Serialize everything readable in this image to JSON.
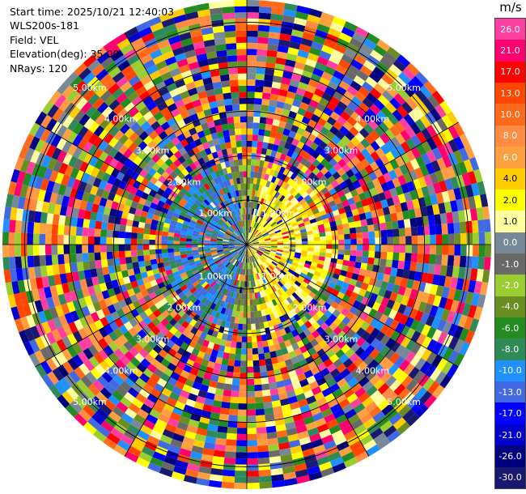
{
  "header": {
    "start_time": "Start time: 2025/10/21 12:40:03",
    "instrument": "WLS200s-181",
    "field": "Field: VEL",
    "elevation": "Elevation(deg): 35.00",
    "nrays": "NRays: 120"
  },
  "colorbar": {
    "unit": "m/s",
    "levels": [
      {
        "label": "26.0",
        "color": "#ff3fa0"
      },
      {
        "label": "21.0",
        "color": "#ff006e"
      },
      {
        "label": "17.0",
        "color": "#ff0000"
      },
      {
        "label": "13.0",
        "color": "#ff4500"
      },
      {
        "label": "10.0",
        "color": "#ff6a1a"
      },
      {
        "label": "8.0",
        "color": "#ff8c42"
      },
      {
        "label": "6.0",
        "color": "#ffa040"
      },
      {
        "label": "4.0",
        "color": "#ffcc00"
      },
      {
        "label": "2.0",
        "color": "#ffff00"
      },
      {
        "label": "1.0",
        "color": "#ffffa0"
      },
      {
        "label": "0.0",
        "color": "#778899"
      },
      {
        "label": "-1.0",
        "color": "#696969"
      },
      {
        "label": "-2.0",
        "color": "#9acd32"
      },
      {
        "label": "-4.0",
        "color": "#6b8e23"
      },
      {
        "label": "-6.0",
        "color": "#228b22"
      },
      {
        "label": "-8.0",
        "color": "#2e8b57"
      },
      {
        "label": "-10.0",
        "color": "#1e90ff"
      },
      {
        "label": "-13.0",
        "color": "#4169e1"
      },
      {
        "label": "-17.0",
        "color": "#0000ff"
      },
      {
        "label": "-21.0",
        "color": "#0000cd"
      },
      {
        "label": "-26.0",
        "color": "#000080"
      },
      {
        "label": "-30.0",
        "color": "#191970"
      }
    ]
  },
  "chart_data": {
    "type": "heatmap",
    "projection": "polar-ppi",
    "field": "VEL",
    "nrays": 120,
    "range_rings_km": [
      1,
      2,
      3,
      4,
      5
    ],
    "range_labels": [
      "1.00km",
      "2.00km",
      "3.00km",
      "4.00km",
      "5.00km"
    ],
    "color_scale": "colorbar.levels",
    "pattern": "near-field positive velocities (yellow) toward east, negative (blue/green) toward west; outer ranges noisy across full scale"
  }
}
